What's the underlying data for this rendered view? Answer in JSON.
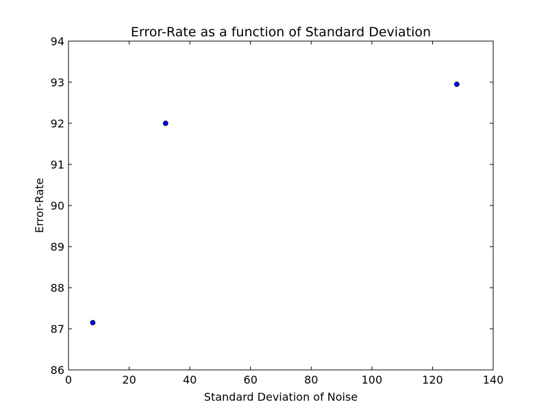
{
  "chart_data": {
    "type": "scatter",
    "title": "Error-Rate as a function of Standard Deviation",
    "xlabel": "Standard Deviation of Noise",
    "ylabel": "Error-Rate",
    "xlim": [
      0,
      140
    ],
    "ylim": [
      86,
      94
    ],
    "xticks": [
      "0",
      "20",
      "40",
      "60",
      "80",
      "100",
      "120",
      "140"
    ],
    "yticks": [
      "86",
      "87",
      "88",
      "89",
      "90",
      "91",
      "92",
      "93",
      "94"
    ],
    "grid": false,
    "series": [
      {
        "color": "#0000ff",
        "points": [
          {
            "x": 8,
            "y": 87.15
          },
          {
            "x": 32,
            "y": 92.0
          },
          {
            "x": 128,
            "y": 92.95
          }
        ]
      }
    ]
  }
}
